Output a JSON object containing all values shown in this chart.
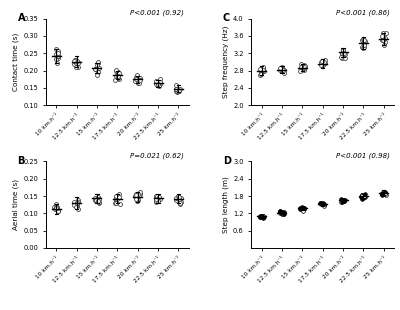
{
  "speeds": [
    "10 km.h⁻¹",
    "12.5 km.h⁻¹",
    "15 km.h⁻¹",
    "17.5 km.h⁻¹",
    "20 km.h⁻¹",
    "22.5 km.h⁻¹",
    "25 km.h⁻¹"
  ],
  "panel_labels": [
    "A",
    "B",
    "C",
    "D"
  ],
  "pvalues": [
    "P<0.001 (0.92)",
    "P=0.021 (0.62)",
    "P<0.001 (0.86)",
    "P<0.001 (0.98)"
  ],
  "ylabels": [
    "Contact time (s)",
    "Aerial time (s)",
    "Step frequency (Hz)",
    "Step length (m)"
  ],
  "A_means": [
    0.243,
    0.225,
    0.207,
    0.188,
    0.175,
    0.163,
    0.148
  ],
  "A_sd": [
    0.02,
    0.016,
    0.014,
    0.012,
    0.01,
    0.01,
    0.009
  ],
  "A_ylim": [
    0.1,
    0.35
  ],
  "A_yticks": [
    0.1,
    0.15,
    0.2,
    0.25,
    0.3,
    0.35
  ],
  "B_means": [
    0.113,
    0.13,
    0.143,
    0.142,
    0.147,
    0.143,
    0.142
  ],
  "B_sd": [
    0.014,
    0.016,
    0.012,
    0.013,
    0.014,
    0.014,
    0.013
  ],
  "B_ylim": [
    0.0,
    0.25
  ],
  "B_yticks": [
    0.0,
    0.05,
    0.1,
    0.15,
    0.2,
    0.25
  ],
  "C_means": [
    2.8,
    2.82,
    2.87,
    2.96,
    3.22,
    3.43,
    3.52
  ],
  "C_sd": [
    0.1,
    0.08,
    0.08,
    0.1,
    0.1,
    0.14,
    0.14
  ],
  "C_ylim": [
    2.0,
    4.0
  ],
  "C_yticks": [
    2.0,
    2.4,
    2.8,
    3.2,
    3.6,
    4.0
  ],
  "D_means": [
    1.1,
    1.23,
    1.38,
    1.52,
    1.65,
    1.8,
    1.92
  ],
  "D_sd": [
    0.04,
    0.05,
    0.05,
    0.05,
    0.06,
    0.07,
    0.08
  ],
  "D_ylim": [
    0.0,
    3.0
  ],
  "D_yticks": [
    0.6,
    1.2,
    1.8,
    2.4,
    3.0
  ],
  "n_points": 10,
  "background": "#ffffff"
}
